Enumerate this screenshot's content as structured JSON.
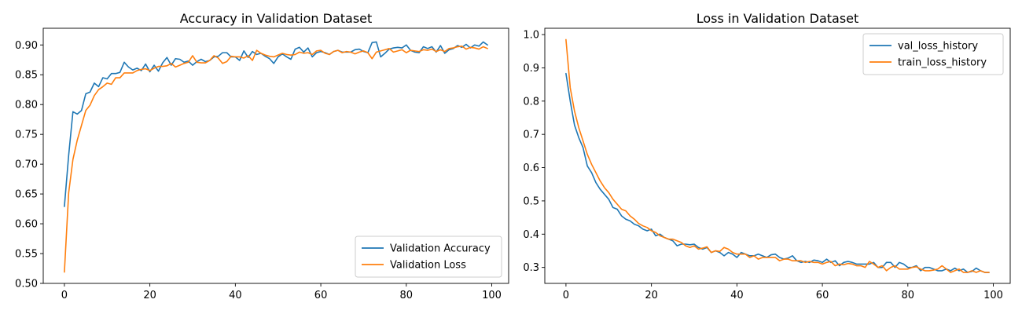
{
  "chart_data": [
    {
      "type": "line",
      "title": "Accuracy in Validation Dataset",
      "xlabel": "",
      "ylabel": "",
      "xlim": [
        -4.95,
        103.95
      ],
      "ylim": [
        0.5,
        0.928
      ],
      "xticks": [
        0,
        20,
        40,
        60,
        80,
        100
      ],
      "xtick_labels": [
        "0",
        "20",
        "40",
        "60",
        "80",
        "100"
      ],
      "yticks": [
        0.5,
        0.55,
        0.6,
        0.65,
        0.7,
        0.75,
        0.8,
        0.85,
        0.9
      ],
      "ytick_labels": [
        "0.50",
        "0.55",
        "0.60",
        "0.65",
        "0.70",
        "0.75",
        "0.80",
        "0.85",
        "0.90"
      ],
      "grid": false,
      "legend_position": "bottom-right",
      "series": [
        {
          "name": "Validation Accuracy",
          "color": "#1f77b4",
          "values": [
            0.629,
            0.715,
            0.788,
            0.784,
            0.79,
            0.818,
            0.821,
            0.836,
            0.83,
            0.845,
            0.843,
            0.852,
            0.852,
            0.854,
            0.871,
            0.863,
            0.858,
            0.861,
            0.857,
            0.868,
            0.855,
            0.866,
            0.856,
            0.87,
            0.879,
            0.866,
            0.877,
            0.876,
            0.871,
            0.873,
            0.866,
            0.872,
            0.876,
            0.872,
            0.874,
            0.88,
            0.881,
            0.887,
            0.887,
            0.88,
            0.88,
            0.874,
            0.89,
            0.879,
            0.889,
            0.884,
            0.886,
            0.881,
            0.877,
            0.869,
            0.88,
            0.885,
            0.88,
            0.876,
            0.893,
            0.896,
            0.888,
            0.895,
            0.88,
            0.887,
            0.889,
            0.887,
            0.884,
            0.889,
            0.891,
            0.888,
            0.888,
            0.888,
            0.892,
            0.893,
            0.889,
            0.887,
            0.904,
            0.905,
            0.88,
            0.886,
            0.893,
            0.895,
            0.896,
            0.895,
            0.9,
            0.891,
            0.888,
            0.887,
            0.897,
            0.894,
            0.897,
            0.888,
            0.899,
            0.886,
            0.892,
            0.894,
            0.899,
            0.896,
            0.901,
            0.895,
            0.9,
            0.898,
            0.905,
            0.9
          ]
        },
        {
          "name": "Validation Loss",
          "color": "#ff7f0e",
          "values": [
            0.519,
            0.652,
            0.708,
            0.74,
            0.765,
            0.79,
            0.799,
            0.815,
            0.825,
            0.83,
            0.836,
            0.834,
            0.845,
            0.845,
            0.853,
            0.853,
            0.853,
            0.857,
            0.859,
            0.86,
            0.857,
            0.861,
            0.864,
            0.864,
            0.865,
            0.869,
            0.863,
            0.866,
            0.869,
            0.871,
            0.882,
            0.871,
            0.87,
            0.87,
            0.874,
            0.882,
            0.878,
            0.869,
            0.872,
            0.881,
            0.88,
            0.88,
            0.878,
            0.882,
            0.874,
            0.891,
            0.886,
            0.883,
            0.881,
            0.88,
            0.883,
            0.886,
            0.884,
            0.883,
            0.884,
            0.888,
            0.886,
            0.887,
            0.884,
            0.89,
            0.891,
            0.886,
            0.884,
            0.889,
            0.891,
            0.887,
            0.889,
            0.888,
            0.885,
            0.888,
            0.89,
            0.887,
            0.877,
            0.888,
            0.89,
            0.892,
            0.894,
            0.888,
            0.89,
            0.892,
            0.887,
            0.891,
            0.89,
            0.889,
            0.892,
            0.891,
            0.893,
            0.889,
            0.892,
            0.889,
            0.894,
            0.895,
            0.897,
            0.898,
            0.893,
            0.896,
            0.895,
            0.893,
            0.897,
            0.894
          ]
        }
      ]
    },
    {
      "type": "line",
      "title": "Loss in Validation Dataset",
      "xlabel": "",
      "ylabel": "",
      "xlim": [
        -4.95,
        103.95
      ],
      "ylim": [
        0.252,
        1.019
      ],
      "xticks": [
        0,
        20,
        40,
        60,
        80,
        100
      ],
      "xtick_labels": [
        "0",
        "20",
        "40",
        "60",
        "80",
        "100"
      ],
      "yticks": [
        0.3,
        0.4,
        0.5,
        0.6,
        0.7,
        0.8,
        0.9,
        1.0
      ],
      "ytick_labels": [
        "0.3",
        "0.4",
        "0.5",
        "0.6",
        "0.7",
        "0.8",
        "0.9",
        "1.0"
      ],
      "grid": false,
      "legend_position": "top-right",
      "series": [
        {
          "name": "val_loss_history",
          "color": "#1f77b4",
          "values": [
            0.883,
            0.8,
            0.728,
            0.69,
            0.66,
            0.605,
            0.585,
            0.555,
            0.535,
            0.52,
            0.505,
            0.48,
            0.475,
            0.455,
            0.445,
            0.44,
            0.43,
            0.425,
            0.415,
            0.41,
            0.415,
            0.395,
            0.4,
            0.39,
            0.385,
            0.38,
            0.365,
            0.37,
            0.37,
            0.368,
            0.37,
            0.36,
            0.355,
            0.36,
            0.345,
            0.35,
            0.345,
            0.335,
            0.345,
            0.34,
            0.33,
            0.345,
            0.34,
            0.335,
            0.335,
            0.34,
            0.335,
            0.33,
            0.338,
            0.34,
            0.33,
            0.325,
            0.328,
            0.335,
            0.32,
            0.315,
            0.318,
            0.315,
            0.322,
            0.32,
            0.315,
            0.325,
            0.315,
            0.32,
            0.305,
            0.315,
            0.318,
            0.315,
            0.31,
            0.31,
            0.31,
            0.31,
            0.315,
            0.3,
            0.3,
            0.315,
            0.315,
            0.3,
            0.315,
            0.31,
            0.3,
            0.3,
            0.305,
            0.29,
            0.3,
            0.3,
            0.295,
            0.29,
            0.29,
            0.295,
            0.29,
            0.298,
            0.29,
            0.295,
            0.285,
            0.288,
            0.298,
            0.29,
            0.285,
            0.285
          ]
        },
        {
          "name": "train_loss_history",
          "color": "#ff7f0e",
          "values": [
            0.985,
            0.84,
            0.77,
            0.72,
            0.68,
            0.64,
            0.61,
            0.585,
            0.56,
            0.54,
            0.525,
            0.505,
            0.49,
            0.475,
            0.47,
            0.455,
            0.445,
            0.432,
            0.425,
            0.42,
            0.41,
            0.405,
            0.395,
            0.39,
            0.385,
            0.385,
            0.38,
            0.375,
            0.365,
            0.36,
            0.365,
            0.355,
            0.358,
            0.362,
            0.345,
            0.35,
            0.348,
            0.36,
            0.355,
            0.345,
            0.34,
            0.34,
            0.34,
            0.33,
            0.335,
            0.325,
            0.33,
            0.33,
            0.33,
            0.33,
            0.32,
            0.325,
            0.325,
            0.32,
            0.32,
            0.32,
            0.315,
            0.318,
            0.315,
            0.315,
            0.31,
            0.315,
            0.318,
            0.305,
            0.31,
            0.308,
            0.312,
            0.31,
            0.305,
            0.305,
            0.3,
            0.318,
            0.31,
            0.3,
            0.305,
            0.29,
            0.3,
            0.305,
            0.295,
            0.295,
            0.295,
            0.3,
            0.302,
            0.295,
            0.29,
            0.29,
            0.292,
            0.295,
            0.305,
            0.295,
            0.285,
            0.29,
            0.295,
            0.285,
            0.285,
            0.29,
            0.285,
            0.29,
            0.285,
            0.285
          ]
        }
      ]
    }
  ]
}
